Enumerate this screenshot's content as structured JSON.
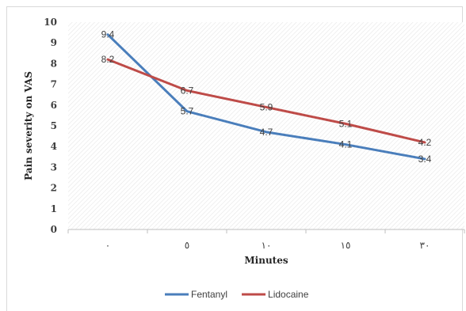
{
  "chart_data": {
    "type": "line",
    "categories": [
      "٠",
      "٥",
      "١٠",
      "١٥",
      "٣٠"
    ],
    "series": [
      {
        "name": "Fentanyl",
        "values": [
          9.4,
          5.7,
          4.7,
          4.1,
          3.4
        ],
        "color": "#4a7ebb"
      },
      {
        "name": "Lidocaine",
        "values": [
          8.2,
          6.7,
          5.9,
          5.1,
          4.2
        ],
        "color": "#be4b48"
      }
    ],
    "title": "",
    "xlabel": "Minutes",
    "ylabel": "Pain severity on VAS",
    "ylim": [
      0,
      10
    ],
    "yticks": [
      0,
      1,
      2,
      3,
      4,
      5,
      6,
      7,
      8,
      9,
      10
    ],
    "grid": false,
    "plot_fill": "diagonal-hatch",
    "legend_position": "bottom"
  }
}
